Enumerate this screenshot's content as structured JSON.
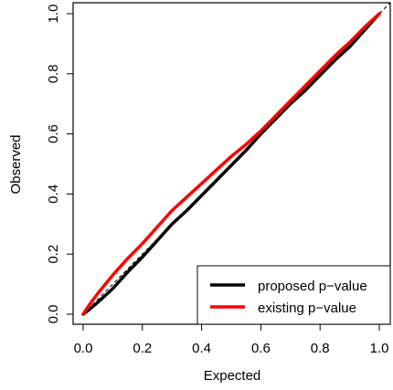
{
  "chart_data": {
    "type": "line",
    "title": "",
    "xlabel": "Expected",
    "ylabel": "Observed",
    "xlim": [
      0,
      1
    ],
    "ylim": [
      0,
      1
    ],
    "x_ticks": [
      "0.0",
      "0.2",
      "0.4",
      "0.6",
      "0.8",
      "1.0"
    ],
    "y_ticks": [
      "0.0",
      "0.2",
      "0.4",
      "0.6",
      "0.8",
      "1.0"
    ],
    "reference_line": {
      "type": "y=x",
      "style": "dashed",
      "color": "#000000"
    },
    "legend_position": "bottom-right",
    "series": [
      {
        "name": "proposed p−value",
        "color": "#000000",
        "x": [
          0,
          0.02,
          0.05,
          0.1,
          0.15,
          0.2,
          0.25,
          0.3,
          0.35,
          0.4,
          0.45,
          0.5,
          0.55,
          0.6,
          0.65,
          0.7,
          0.75,
          0.8,
          0.85,
          0.9,
          0.95,
          1.0
        ],
        "y": [
          0,
          0.015,
          0.04,
          0.085,
          0.14,
          0.19,
          0.245,
          0.3,
          0.345,
          0.395,
          0.445,
          0.495,
          0.545,
          0.6,
          0.65,
          0.7,
          0.745,
          0.795,
          0.845,
          0.89,
          0.945,
          1.0
        ]
      },
      {
        "name": "existing p−value",
        "color": "#ff0000",
        "x": [
          0,
          0.02,
          0.05,
          0.1,
          0.15,
          0.2,
          0.25,
          0.3,
          0.35,
          0.4,
          0.45,
          0.5,
          0.55,
          0.6,
          0.65,
          0.7,
          0.75,
          0.8,
          0.85,
          0.9,
          0.95,
          1.0
        ],
        "y": [
          0,
          0.03,
          0.07,
          0.13,
          0.185,
          0.235,
          0.29,
          0.345,
          0.39,
          0.435,
          0.48,
          0.525,
          0.565,
          0.61,
          0.66,
          0.71,
          0.76,
          0.81,
          0.86,
          0.905,
          0.955,
          1.0
        ]
      }
    ]
  }
}
